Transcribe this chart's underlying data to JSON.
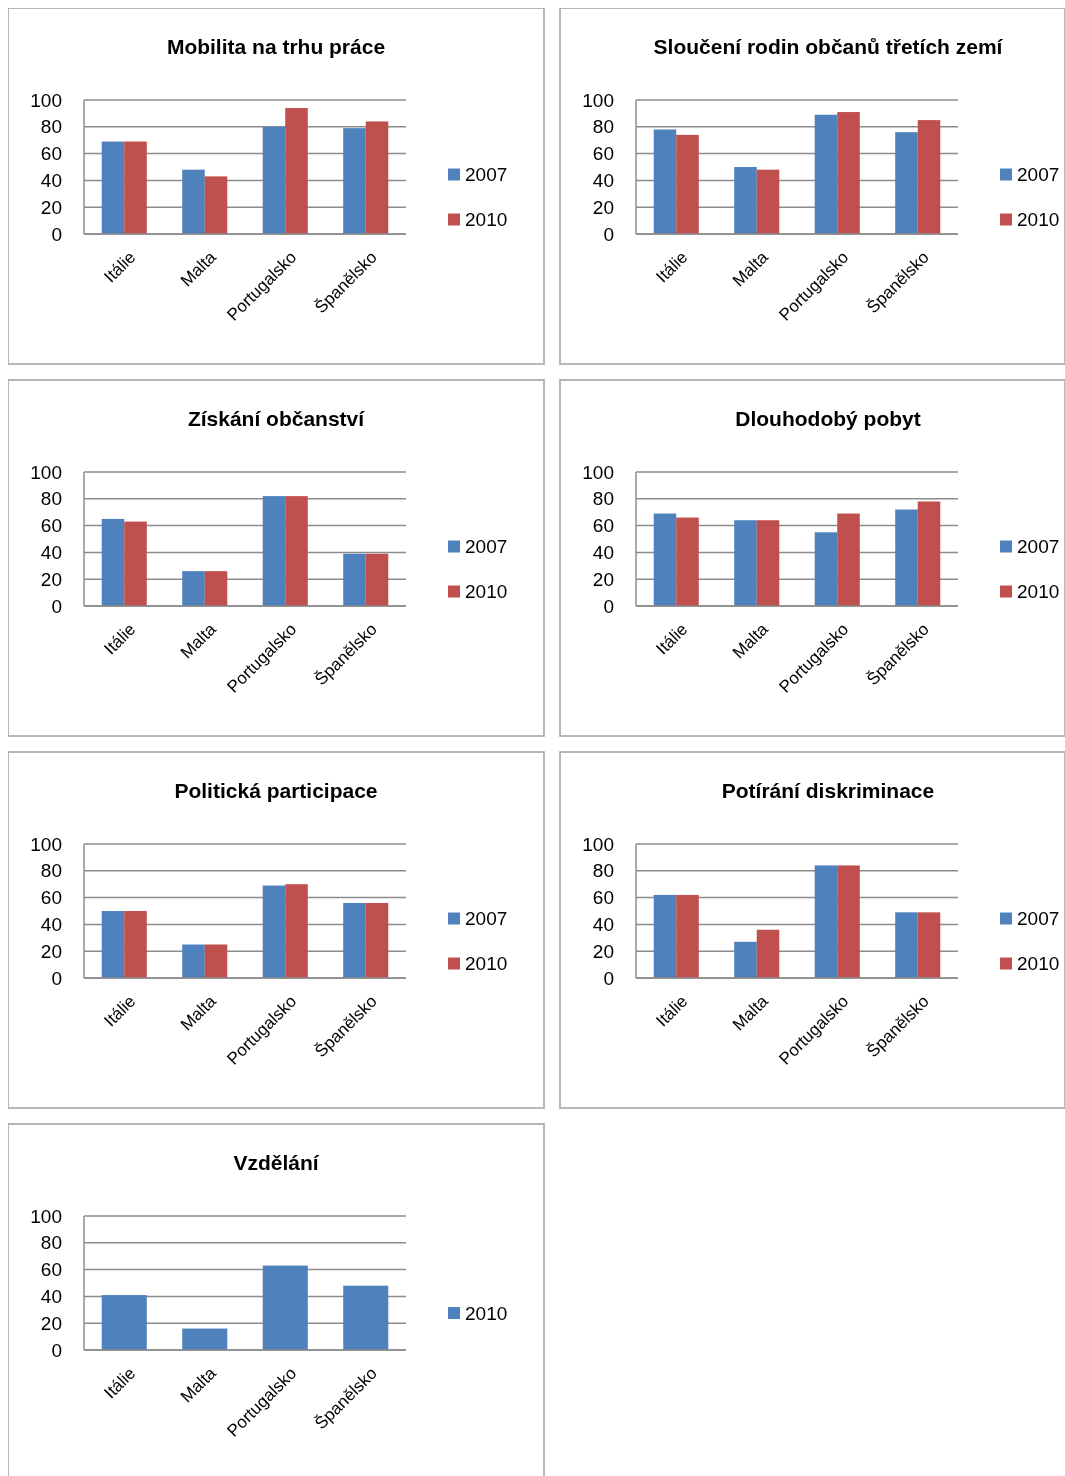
{
  "chart_data": [
    {
      "type": "bar",
      "title": "Mobilita na trhu práce",
      "categories": [
        "Itálie",
        "Malta",
        "Portugalsko",
        "Španělsko"
      ],
      "series": [
        {
          "name": "2007",
          "color": "#4f81bd",
          "values": [
            69,
            48,
            80,
            79
          ]
        },
        {
          "name": "2010",
          "color": "#c0504d",
          "values": [
            69,
            43,
            94,
            84
          ]
        }
      ],
      "ylim": [
        0,
        100
      ],
      "yticks": [
        0,
        20,
        40,
        60,
        80,
        100
      ],
      "grid": "y",
      "legend": "right"
    },
    {
      "type": "bar",
      "title": "Sloučení rodin občanů třetích zemí",
      "categories": [
        "Itálie",
        "Malta",
        "Portugalsko",
        "Španělsko"
      ],
      "series": [
        {
          "name": "2007",
          "color": "#4f81bd",
          "values": [
            78,
            50,
            89,
            76
          ]
        },
        {
          "name": "2010",
          "color": "#c0504d",
          "values": [
            74,
            48,
            91,
            85
          ]
        }
      ],
      "ylim": [
        0,
        100
      ],
      "yticks": [
        0,
        20,
        40,
        60,
        80,
        100
      ],
      "grid": "y",
      "legend": "right"
    },
    {
      "type": "bar",
      "title": "Získání občanství",
      "categories": [
        "Itálie",
        "Malta",
        "Portugalsko",
        "Španělsko"
      ],
      "series": [
        {
          "name": "2007",
          "color": "#4f81bd",
          "values": [
            65,
            26,
            82,
            39
          ]
        },
        {
          "name": "2010",
          "color": "#c0504d",
          "values": [
            63,
            26,
            82,
            39
          ]
        }
      ],
      "ylim": [
        0,
        100
      ],
      "yticks": [
        0,
        20,
        40,
        60,
        80,
        100
      ],
      "grid": "y",
      "legend": "right"
    },
    {
      "type": "bar",
      "title": "Dlouhodobý pobyt",
      "categories": [
        "Itálie",
        "Malta",
        "Portugalsko",
        "Španělsko"
      ],
      "series": [
        {
          "name": "2007",
          "color": "#4f81bd",
          "values": [
            69,
            64,
            55,
            72
          ]
        },
        {
          "name": "2010",
          "color": "#c0504d",
          "values": [
            66,
            64,
            69,
            78
          ]
        }
      ],
      "ylim": [
        0,
        100
      ],
      "yticks": [
        0,
        20,
        40,
        60,
        80,
        100
      ],
      "grid": "y",
      "legend": "right"
    },
    {
      "type": "bar",
      "title": "Politická participace",
      "categories": [
        "Itálie",
        "Malta",
        "Portugalsko",
        "Španělsko"
      ],
      "series": [
        {
          "name": "2007",
          "color": "#4f81bd",
          "values": [
            50,
            25,
            69,
            56
          ]
        },
        {
          "name": "2010",
          "color": "#c0504d",
          "values": [
            50,
            25,
            70,
            56
          ]
        }
      ],
      "ylim": [
        0,
        100
      ],
      "yticks": [
        0,
        20,
        40,
        60,
        80,
        100
      ],
      "grid": "y",
      "legend": "right"
    },
    {
      "type": "bar",
      "title": "Potírání diskriminace",
      "categories": [
        "Itálie",
        "Malta",
        "Portugalsko",
        "Španělsko"
      ],
      "series": [
        {
          "name": "2007",
          "color": "#4f81bd",
          "values": [
            62,
            27,
            84,
            49
          ]
        },
        {
          "name": "2010",
          "color": "#c0504d",
          "values": [
            62,
            36,
            84,
            49
          ]
        }
      ],
      "ylim": [
        0,
        100
      ],
      "yticks": [
        0,
        20,
        40,
        60,
        80,
        100
      ],
      "grid": "y",
      "legend": "right"
    },
    {
      "type": "bar",
      "title": "Vzdělání",
      "categories": [
        "Itálie",
        "Malta",
        "Portugalsko",
        "Španělsko"
      ],
      "series": [
        {
          "name": "2010",
          "color": "#4f81bd",
          "values": [
            41,
            16,
            63,
            48
          ]
        }
      ],
      "ylim": [
        0,
        100
      ],
      "yticks": [
        0,
        20,
        40,
        60,
        80,
        100
      ],
      "grid": "y",
      "legend": "right"
    }
  ]
}
